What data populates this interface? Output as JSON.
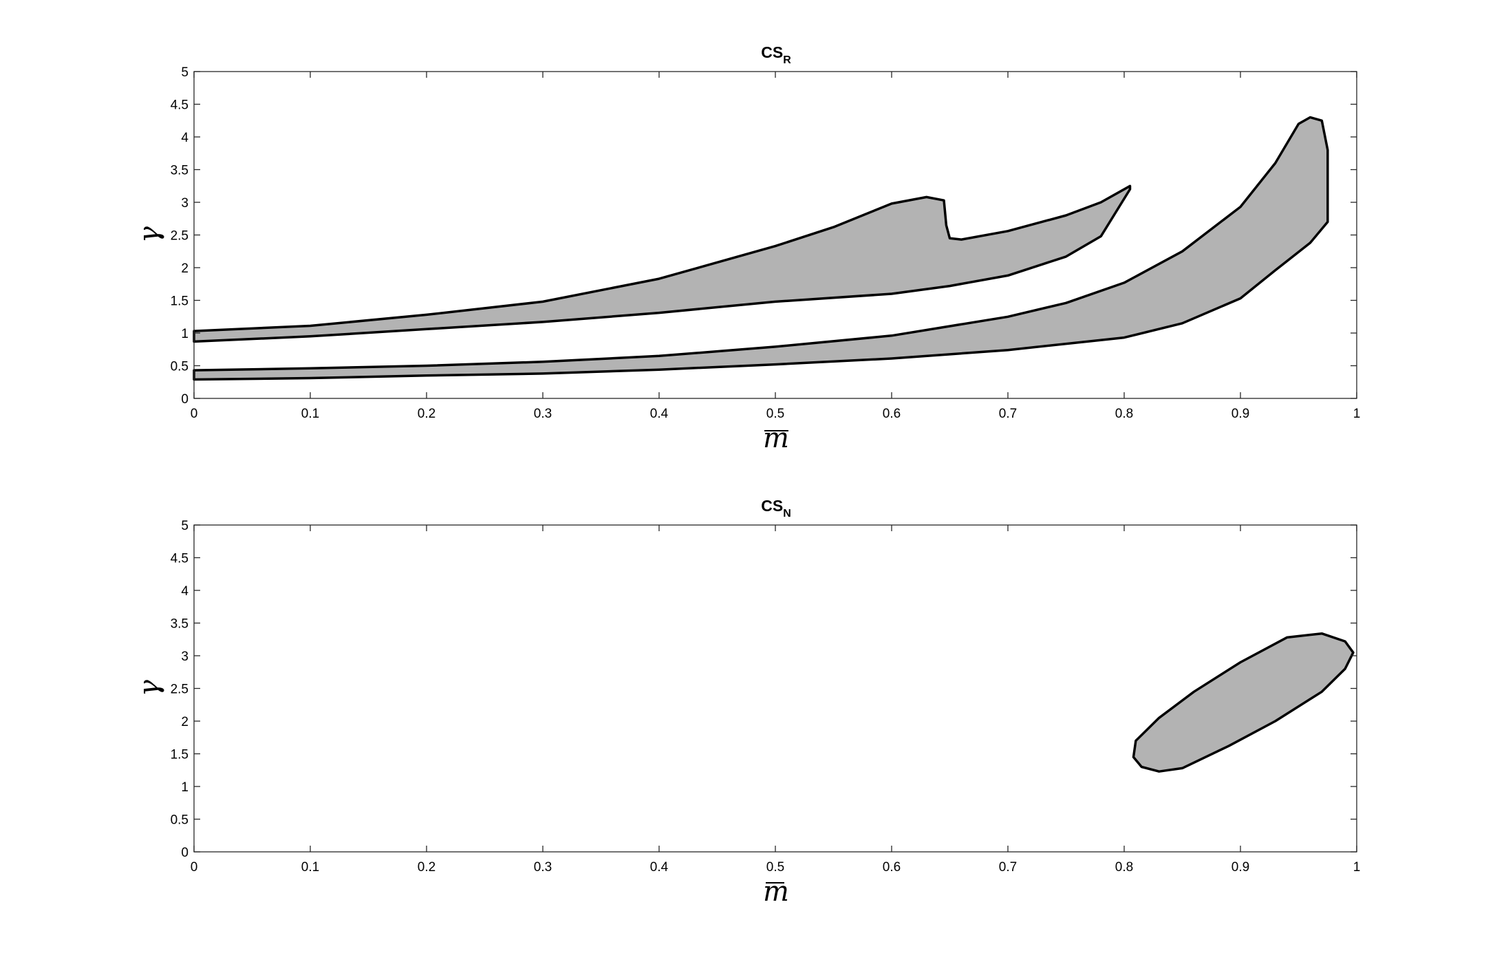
{
  "chart_data": [
    {
      "type": "area",
      "title_main": "CS",
      "title_sub": "R",
      "xlabel": "m",
      "ylabel": "γ",
      "xlim": [
        0,
        1
      ],
      "ylim": [
        0,
        5
      ],
      "x_ticks": [
        "0",
        "0.1",
        "0.2",
        "0.3",
        "0.4",
        "0.5",
        "0.6",
        "0.7",
        "0.8",
        "0.9",
        "1"
      ],
      "y_ticks": [
        "0",
        "0.5",
        "1",
        "1.5",
        "2",
        "2.5",
        "3",
        "3.5",
        "4",
        "4.5",
        "5"
      ],
      "fill_color": "#b3b3b3",
      "edge_color": "#000000",
      "grid": false,
      "regions": [
        {
          "upper": [
            [
              0,
              1.03
            ],
            [
              0.1,
              1.11
            ],
            [
              0.2,
              1.28
            ],
            [
              0.3,
              1.48
            ],
            [
              0.4,
              1.83
            ],
            [
              0.5,
              2.33
            ],
            [
              0.55,
              2.62
            ],
            [
              0.6,
              2.98
            ],
            [
              0.63,
              3.08
            ],
            [
              0.645,
              3.03
            ],
            [
              0.647,
              2.65
            ],
            [
              0.65,
              2.45
            ],
            [
              0.66,
              2.43
            ],
            [
              0.7,
              2.56
            ],
            [
              0.75,
              2.8
            ],
            [
              0.78,
              3.0
            ],
            [
              0.805,
              3.25
            ]
          ],
          "lower": [
            [
              0,
              0.87
            ],
            [
              0.1,
              0.95
            ],
            [
              0.2,
              1.06
            ],
            [
              0.3,
              1.17
            ],
            [
              0.4,
              1.31
            ],
            [
              0.5,
              1.48
            ],
            [
              0.6,
              1.6
            ],
            [
              0.65,
              1.72
            ],
            [
              0.7,
              1.88
            ],
            [
              0.75,
              2.17
            ],
            [
              0.78,
              2.48
            ],
            [
              0.805,
              3.2
            ]
          ]
        },
        {
          "upper": [
            [
              0,
              0.43
            ],
            [
              0.1,
              0.46
            ],
            [
              0.2,
              0.5
            ],
            [
              0.3,
              0.56
            ],
            [
              0.4,
              0.65
            ],
            [
              0.5,
              0.79
            ],
            [
              0.6,
              0.96
            ],
            [
              0.7,
              1.25
            ],
            [
              0.75,
              1.46
            ],
            [
              0.8,
              1.77
            ],
            [
              0.85,
              2.25
            ],
            [
              0.9,
              2.93
            ],
            [
              0.93,
              3.6
            ],
            [
              0.95,
              4.2
            ],
            [
              0.96,
              4.3
            ],
            [
              0.97,
              4.25
            ],
            [
              0.975,
              3.8
            ],
            [
              0.975,
              2.7
            ]
          ],
          "lower": [
            [
              0,
              0.29
            ],
            [
              0.1,
              0.31
            ],
            [
              0.2,
              0.35
            ],
            [
              0.3,
              0.38
            ],
            [
              0.4,
              0.44
            ],
            [
              0.5,
              0.52
            ],
            [
              0.6,
              0.61
            ],
            [
              0.7,
              0.74
            ],
            [
              0.8,
              0.93
            ],
            [
              0.85,
              1.15
            ],
            [
              0.9,
              1.53
            ],
            [
              0.93,
              1.96
            ],
            [
              0.96,
              2.38
            ],
            [
              0.975,
              2.7
            ]
          ]
        }
      ]
    },
    {
      "type": "area",
      "title_main": "CS",
      "title_sub": "N",
      "xlabel": "m",
      "ylabel": "γ",
      "xlim": [
        0,
        1
      ],
      "ylim": [
        0,
        5
      ],
      "x_ticks": [
        "0",
        "0.1",
        "0.2",
        "0.3",
        "0.4",
        "0.5",
        "0.6",
        "0.7",
        "0.8",
        "0.9",
        "1"
      ],
      "y_ticks": [
        "0",
        "0.5",
        "1",
        "1.5",
        "2",
        "2.5",
        "3",
        "3.5",
        "4",
        "4.5",
        "5"
      ],
      "fill_color": "#b3b3b3",
      "edge_color": "#000000",
      "grid": false,
      "regions": [
        {
          "closed": [
            [
              0.808,
              1.45
            ],
            [
              0.81,
              1.7
            ],
            [
              0.83,
              2.05
            ],
            [
              0.86,
              2.45
            ],
            [
              0.9,
              2.9
            ],
            [
              0.94,
              3.28
            ],
            [
              0.97,
              3.34
            ],
            [
              0.99,
              3.22
            ],
            [
              0.997,
              3.05
            ],
            [
              0.99,
              2.8
            ],
            [
              0.97,
              2.45
            ],
            [
              0.93,
              2.0
            ],
            [
              0.89,
              1.62
            ],
            [
              0.85,
              1.28
            ],
            [
              0.83,
              1.23
            ],
            [
              0.815,
              1.3
            ],
            [
              0.808,
              1.45
            ]
          ]
        }
      ]
    }
  ]
}
